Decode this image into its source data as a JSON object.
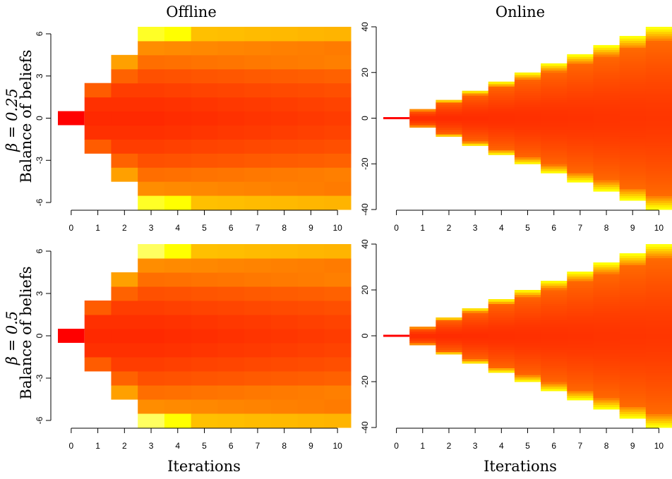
{
  "figure": {
    "col_titles": [
      "Offline",
      "Online"
    ],
    "row_labels": [
      {
        "beta": "β = 0.25",
        "ylabel": "Balance of beliefs"
      },
      {
        "beta": "β = 0.5",
        "ylabel": "Balance of beliefs"
      }
    ],
    "xlabel": "Iterations"
  },
  "chart_data": [
    {
      "type": "heatmap",
      "panel": "offline-beta-0.25",
      "x": [
        0,
        1,
        2,
        3,
        4,
        5,
        6,
        7,
        8,
        9,
        10
      ],
      "x_ticks": [
        "0",
        "1",
        "2",
        "3",
        "4",
        "5",
        "6",
        "7",
        "8",
        "9",
        "10"
      ],
      "xlabel": "Iterations",
      "ylabel": "Balance of beliefs",
      "y_ticks": [
        "-6",
        "-3",
        "0",
        "3",
        "6"
      ],
      "ylim": [
        -6.5,
        6.5
      ],
      "support_halfwidth": [
        0,
        2,
        4,
        6,
        6,
        6,
        6,
        6,
        6,
        6,
        6
      ],
      "color_scale": [
        "#ff0000",
        "#ff4400",
        "#ff8000",
        "#ffbf00",
        "#ffff00",
        "#ffff80"
      ]
    },
    {
      "type": "heatmap",
      "panel": "online-beta-0.25",
      "x": [
        0,
        1,
        2,
        3,
        4,
        5,
        6,
        7,
        8,
        9,
        10
      ],
      "x_ticks": [
        "0",
        "1",
        "2",
        "3",
        "4",
        "5",
        "6",
        "7",
        "8",
        "9",
        "10"
      ],
      "xlabel": "Iterations",
      "y_ticks": [
        "-40",
        "-20",
        "0",
        "20",
        "40"
      ],
      "ylim": [
        -40,
        40
      ],
      "support_halfwidth": [
        0,
        4,
        8,
        12,
        16,
        20,
        24,
        28,
        32,
        36,
        40
      ],
      "color_scale": [
        "#ff0000",
        "#ff4400",
        "#ff8000",
        "#ffbf00",
        "#ffff00",
        "#ffff80"
      ]
    },
    {
      "type": "heatmap",
      "panel": "offline-beta-0.5",
      "x": [
        0,
        1,
        2,
        3,
        4,
        5,
        6,
        7,
        8,
        9,
        10
      ],
      "x_ticks": [
        "0",
        "1",
        "2",
        "3",
        "4",
        "5",
        "6",
        "7",
        "8",
        "9",
        "10"
      ],
      "xlabel": "Iterations",
      "ylabel": "Balance of beliefs",
      "y_ticks": [
        "-6",
        "-3",
        "0",
        "3",
        "6"
      ],
      "ylim": [
        -6.5,
        6.5
      ],
      "support_halfwidth": [
        0,
        2,
        4,
        6,
        6,
        6,
        6,
        6,
        6,
        6,
        6
      ],
      "color_scale": [
        "#ff0000",
        "#ff4400",
        "#ff8000",
        "#ffbf00",
        "#ffff00",
        "#ffff80"
      ]
    },
    {
      "type": "heatmap",
      "panel": "online-beta-0.5",
      "x": [
        0,
        1,
        2,
        3,
        4,
        5,
        6,
        7,
        8,
        9,
        10
      ],
      "x_ticks": [
        "0",
        "1",
        "2",
        "3",
        "4",
        "5",
        "6",
        "7",
        "8",
        "9",
        "10"
      ],
      "xlabel": "Iterations",
      "y_ticks": [
        "-40",
        "-20",
        "0",
        "20",
        "40"
      ],
      "ylim": [
        -40,
        40
      ],
      "support_halfwidth": [
        0,
        4,
        8,
        12,
        16,
        20,
        24,
        28,
        32,
        36,
        40
      ],
      "color_scale": [
        "#ff0000",
        "#ff4400",
        "#ff8000",
        "#ffbf00",
        "#ffff00",
        "#ffff80"
      ]
    }
  ]
}
